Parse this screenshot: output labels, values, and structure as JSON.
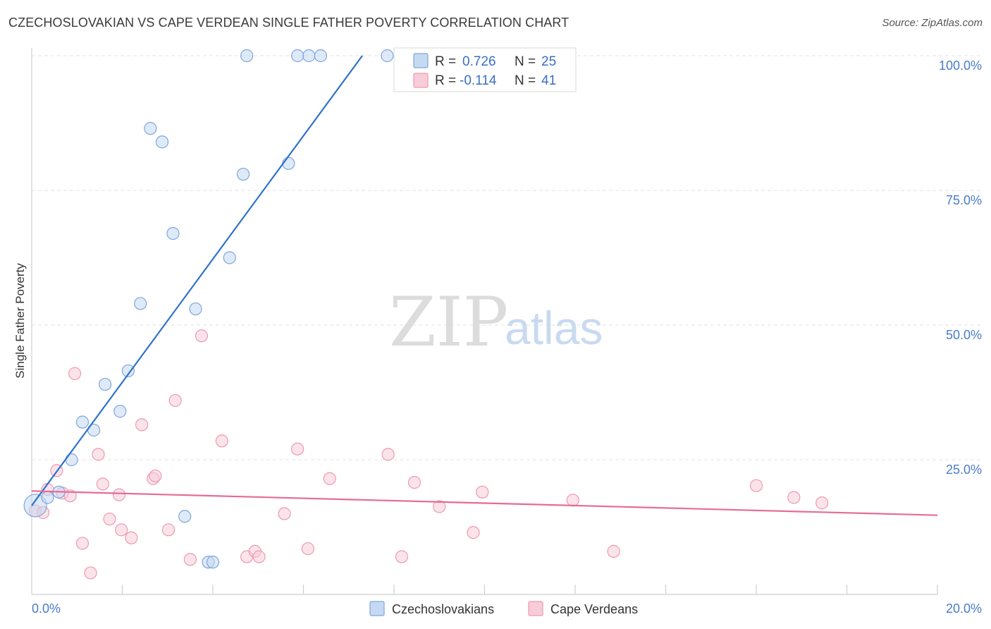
{
  "title": "CZECHOSLOVAKIAN VS CAPE VERDEAN SINGLE FATHER POVERTY CORRELATION CHART",
  "source": "Source: ZipAtlas.com",
  "watermark": {
    "part1": "ZIP",
    "part2": "atlas"
  },
  "colors": {
    "blue_fill": "#c5d9f3",
    "blue_stroke": "#7ea6dc",
    "blue_line": "#2f73c9",
    "pink_fill": "#f8ccd9",
    "pink_stroke": "#ec9ab3",
    "pink_line": "#e66b96",
    "tick_text": "#4a7cc9",
    "grid": "#e3e3e3"
  },
  "legend_top": {
    "row1": {
      "r_label": "R =",
      "r_value": "0.726",
      "n_label": "N =",
      "n_value": "25"
    },
    "row2": {
      "r_label": "R =",
      "r_value": "-0.114",
      "n_label": "N =",
      "n_value": "41"
    }
  },
  "chart_data": {
    "type": "scatter",
    "title": "CZECHOSLOVAKIAN VS CAPE VERDEAN SINGLE FATHER POVERTY CORRELATION CHART",
    "xlabel": "",
    "ylabel": "Single Father Poverty",
    "xlim": [
      0,
      20
    ],
    "ylim": [
      0,
      100
    ],
    "x_tick_labels": [
      "0.0%",
      "20.0%"
    ],
    "y_ticks": [
      25,
      50,
      75,
      100
    ],
    "y_tick_labels": [
      "25.0%",
      "50.0%",
      "75.0%",
      "100.0%"
    ],
    "grid": true,
    "legend_position": "bottom-center",
    "series": [
      {
        "name": "Czechoslovakians",
        "color": "#7ea6dc",
        "R": 0.726,
        "N": 25,
        "trend": {
          "x": [
            0.0,
            7.3
          ],
          "y": [
            16.5,
            100
          ]
        },
        "points": [
          {
            "x": 0.08,
            "y": 16.5,
            "big": true
          },
          {
            "x": 0.35,
            "y": 18.0
          },
          {
            "x": 0.6,
            "y": 19.0
          },
          {
            "x": 0.88,
            "y": 25.0
          },
          {
            "x": 1.12,
            "y": 32.0
          },
          {
            "x": 1.37,
            "y": 30.5
          },
          {
            "x": 1.62,
            "y": 39.0
          },
          {
            "x": 1.95,
            "y": 34.0
          },
          {
            "x": 2.13,
            "y": 41.5
          },
          {
            "x": 2.4,
            "y": 54.0
          },
          {
            "x": 2.62,
            "y": 86.5
          },
          {
            "x": 2.88,
            "y": 84.0
          },
          {
            "x": 3.12,
            "y": 67.0
          },
          {
            "x": 3.38,
            "y": 14.5
          },
          {
            "x": 3.62,
            "y": 53.0
          },
          {
            "x": 3.9,
            "y": 6.0
          },
          {
            "x": 4.0,
            "y": 6.0
          },
          {
            "x": 4.37,
            "y": 62.5
          },
          {
            "x": 4.67,
            "y": 78.0
          },
          {
            "x": 4.75,
            "y": 100.0
          },
          {
            "x": 5.67,
            "y": 80.0
          },
          {
            "x": 5.87,
            "y": 100.0
          },
          {
            "x": 6.12,
            "y": 100.0
          },
          {
            "x": 6.38,
            "y": 100.0
          },
          {
            "x": 7.85,
            "y": 100.0
          }
        ]
      },
      {
        "name": "Cape Verdeans",
        "color": "#ec9ab3",
        "R": -0.114,
        "N": 41,
        "trend": {
          "x": [
            0.0,
            20.0
          ],
          "y": [
            19.2,
            14.7
          ]
        },
        "points": [
          {
            "x": 0.08,
            "y": 15.5
          },
          {
            "x": 0.25,
            "y": 15.2
          },
          {
            "x": 0.35,
            "y": 19.5
          },
          {
            "x": 0.55,
            "y": 23.0
          },
          {
            "x": 0.68,
            "y": 18.8
          },
          {
            "x": 0.85,
            "y": 18.3
          },
          {
            "x": 0.95,
            "y": 41.0
          },
          {
            "x": 1.12,
            "y": 9.5
          },
          {
            "x": 1.3,
            "y": 4.0
          },
          {
            "x": 1.47,
            "y": 26.0
          },
          {
            "x": 1.57,
            "y": 20.5
          },
          {
            "x": 1.72,
            "y": 14.0
          },
          {
            "x": 1.93,
            "y": 18.5
          },
          {
            "x": 1.98,
            "y": 12.0
          },
          {
            "x": 2.2,
            "y": 10.5
          },
          {
            "x": 2.43,
            "y": 31.5
          },
          {
            "x": 2.68,
            "y": 21.5
          },
          {
            "x": 2.73,
            "y": 22.0
          },
          {
            "x": 3.02,
            "y": 12.0
          },
          {
            "x": 3.17,
            "y": 36.0
          },
          {
            "x": 3.5,
            "y": 6.5
          },
          {
            "x": 3.75,
            "y": 48.0
          },
          {
            "x": 4.2,
            "y": 28.5
          },
          {
            "x": 4.75,
            "y": 7.0
          },
          {
            "x": 4.93,
            "y": 8.0
          },
          {
            "x": 5.02,
            "y": 7.0
          },
          {
            "x": 5.58,
            "y": 15.0
          },
          {
            "x": 5.87,
            "y": 27.0
          },
          {
            "x": 6.1,
            "y": 8.5
          },
          {
            "x": 6.58,
            "y": 21.5
          },
          {
            "x": 7.87,
            "y": 26.0
          },
          {
            "x": 8.17,
            "y": 7.0
          },
          {
            "x": 8.45,
            "y": 20.8
          },
          {
            "x": 9.0,
            "y": 16.3
          },
          {
            "x": 9.75,
            "y": 11.5
          },
          {
            "x": 9.95,
            "y": 19.0
          },
          {
            "x": 11.95,
            "y": 17.5
          },
          {
            "x": 12.85,
            "y": 8.0
          },
          {
            "x": 16.0,
            "y": 20.2
          },
          {
            "x": 16.83,
            "y": 18.0
          },
          {
            "x": 17.45,
            "y": 17.0
          }
        ]
      }
    ]
  }
}
